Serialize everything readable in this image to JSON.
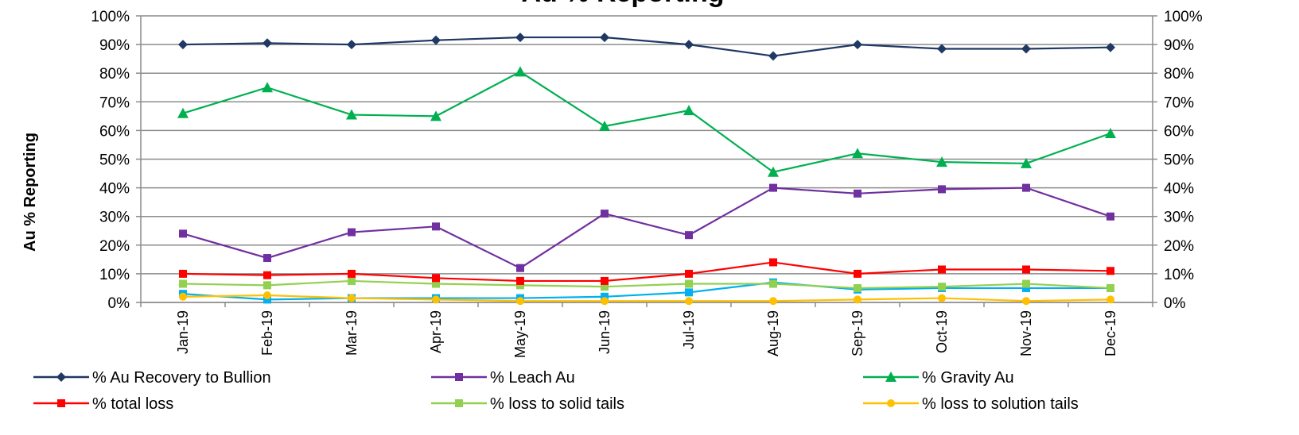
{
  "chart_data": {
    "type": "line",
    "title": "Au % Reporting",
    "ylabel": "Au % Reporting",
    "y_left_ticks": [
      "0%",
      "10%",
      "20%",
      "30%",
      "40%",
      "50%",
      "60%",
      "70%",
      "80%",
      "90%",
      "100%"
    ],
    "y_right_ticks": [
      "0%",
      "10%",
      "20%",
      "30%",
      "40%",
      "50%",
      "60%",
      "70%",
      "80%",
      "90%",
      "100%"
    ],
    "ylim": [
      0,
      100
    ],
    "grid": true,
    "legend_position": "bottom",
    "categories": [
      "Jan-19",
      "Feb-19",
      "Mar-19",
      "Apr-19",
      "May-19",
      "Jun-19",
      "Jul-19",
      "Aug-19",
      "Sep-19",
      "Oct-19",
      "Nov-19",
      "Dec-19"
    ],
    "series": [
      {
        "name": "% Au Recovery to Bullion",
        "color": "#1f3864",
        "marker": "diamond",
        "values": [
          90,
          90.5,
          90,
          91.5,
          92.5,
          92.5,
          90,
          86,
          90,
          88.5,
          88.5,
          89
        ]
      },
      {
        "name": "% Leach Au",
        "color": "#7030a0",
        "marker": "square",
        "values": [
          24,
          15.5,
          24.5,
          26.5,
          12,
          31,
          23.5,
          40,
          38,
          39.5,
          40,
          30
        ]
      },
      {
        "name": "% Gravity Au",
        "color": "#00b050",
        "marker": "triangle",
        "values": [
          66,
          75,
          65.5,
          65,
          80.5,
          61.5,
          67,
          45.5,
          52,
          49,
          48.5,
          59
        ]
      },
      {
        "name": "% total loss",
        "color": "#ff0000",
        "marker": "square",
        "values": [
          10,
          9.5,
          10,
          8.5,
          7.5,
          7.5,
          10,
          14,
          10,
          11.5,
          11.5,
          11
        ]
      },
      {
        "name": "% loss to solid tails",
        "color": "#92d050",
        "marker": "square",
        "values": [
          6.5,
          6,
          7.5,
          6.5,
          6,
          5.5,
          6.5,
          6.5,
          5,
          5.5,
          6.5,
          5
        ]
      },
      {
        "name": "% loss to solution tails",
        "color": "#ffc000",
        "marker": "circle",
        "values": [
          2,
          2.5,
          1.5,
          1,
          0.5,
          0.5,
          0.5,
          0.5,
          1,
          1.5,
          0.5,
          1
        ]
      },
      {
        "name": "",
        "color": "#00b0f0",
        "marker": "square",
        "values": [
          3,
          1,
          1.5,
          1.5,
          1.5,
          2,
          3.5,
          7,
          4.5,
          5,
          5,
          5
        ]
      }
    ]
  }
}
